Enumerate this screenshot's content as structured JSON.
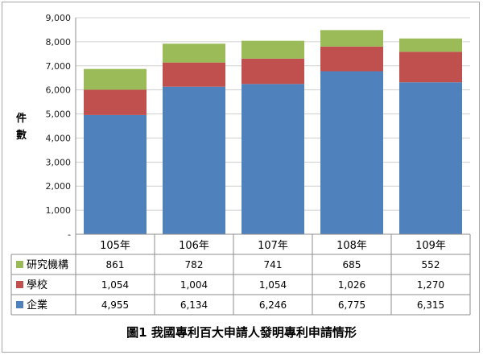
{
  "chart_data": {
    "type": "bar",
    "stacked": true,
    "title": "",
    "xlabel": "",
    "ylabel": "件數",
    "ylim": [
      0,
      9000
    ],
    "yticks": [
      "-",
      "1,000",
      "2,000",
      "3,000",
      "4,000",
      "5,000",
      "6,000",
      "7,000",
      "8,000",
      "9,000"
    ],
    "categories": [
      "105年",
      "106年",
      "107年",
      "108年",
      "109年"
    ],
    "series": [
      {
        "name": "企業",
        "color": "#4f81bd",
        "values": [
          4955,
          6134,
          6246,
          6775,
          6315
        ],
        "labels": [
          "4,955",
          "6,134",
          "6,246",
          "6,775",
          "6,315"
        ]
      },
      {
        "name": "學校",
        "color": "#c0504d",
        "values": [
          1054,
          1004,
          1054,
          1026,
          1270
        ],
        "labels": [
          "1,054",
          "1,004",
          "1,054",
          "1,026",
          "1,270"
        ]
      },
      {
        "name": "研究機構",
        "color": "#9bbb59",
        "values": [
          861,
          782,
          741,
          685,
          552
        ],
        "labels": [
          "861",
          "782",
          "741",
          "685",
          "552"
        ]
      }
    ],
    "grid": true,
    "legend": "data-table-left"
  },
  "caption": "圖1  我國專利百大申請人發明專利申請情形"
}
